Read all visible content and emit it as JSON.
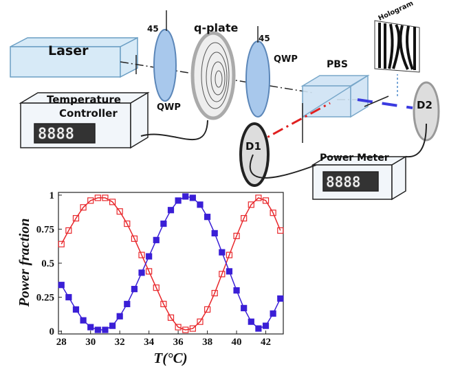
{
  "diagram": {
    "labels": [
      "Laser",
      "45",
      "q-plate",
      "45",
      "QWP",
      "QWP",
      "PBS",
      "Hologram",
      "Temperature",
      "Controller",
      "8888",
      "D1",
      "D2",
      "Power Meter",
      "8888"
    ]
  },
  "chart_data": {
    "type": "line",
    "x_label": "T(°C)",
    "y_label": "Power fraction",
    "x": [
      28,
      28.5,
      29,
      29.5,
      30,
      30.5,
      31,
      31.5,
      32,
      32.5,
      33,
      33.5,
      34,
      34.5,
      35,
      35.5,
      36,
      36.5,
      37,
      37.5,
      38,
      38.5,
      39,
      39.5,
      40,
      40.5,
      41,
      41.5,
      42,
      42.5,
      43
    ],
    "series": [
      {
        "color": "#e8262a",
        "marker": "open-square",
        "values": [
          0.64,
          0.74,
          0.83,
          0.91,
          0.96,
          0.98,
          0.98,
          0.95,
          0.88,
          0.79,
          0.68,
          0.56,
          0.44,
          0.32,
          0.2,
          0.1,
          0.03,
          0.01,
          0.02,
          0.07,
          0.16,
          0.28,
          0.42,
          0.56,
          0.7,
          0.83,
          0.93,
          0.98,
          0.96,
          0.87,
          0.74
        ]
      },
      {
        "color": "#3a1fd6",
        "marker": "filled-square",
        "values": [
          0.34,
          0.25,
          0.16,
          0.08,
          0.03,
          0.01,
          0.01,
          0.04,
          0.11,
          0.2,
          0.31,
          0.43,
          0.55,
          0.67,
          0.79,
          0.89,
          0.96,
          0.99,
          0.98,
          0.93,
          0.84,
          0.72,
          0.58,
          0.44,
          0.3,
          0.17,
          0.07,
          0.02,
          0.04,
          0.13,
          0.24
        ]
      }
    ],
    "xlim": [
      27.8,
      43.2
    ],
    "ylim": [
      -0.02,
      1.02
    ],
    "xticks": [
      28,
      30,
      32,
      34,
      36,
      38,
      40,
      42
    ],
    "yticks": [
      0,
      0.25,
      0.5,
      0.75,
      1
    ]
  }
}
